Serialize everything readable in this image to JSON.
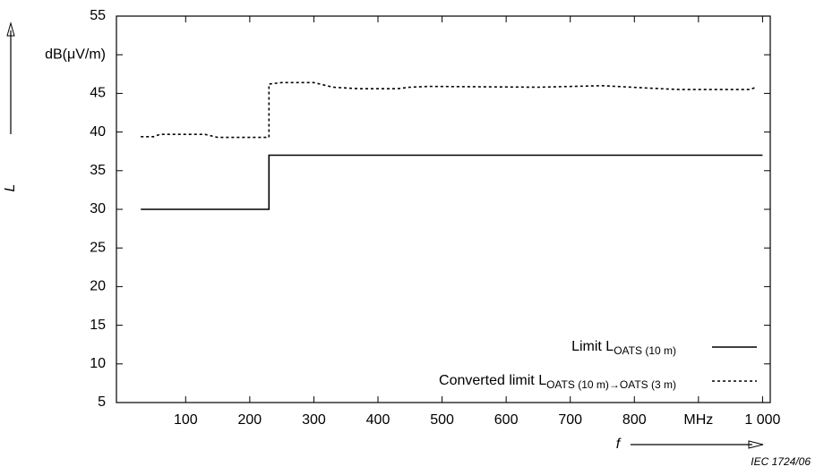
{
  "chart_data": {
    "type": "line",
    "y_label": "L",
    "x_label": "f",
    "footer": "IEC  1724/06",
    "xlim": [
      -8,
      1012
    ],
    "ylim": [
      5,
      55
    ],
    "xticks": [
      100,
      200,
      300,
      400,
      500,
      600,
      700,
      800,
      {
        "value": 900,
        "label": "MHz"
      },
      {
        "value": 1000,
        "label": "1 000"
      }
    ],
    "yticks": [
      5,
      10,
      15,
      20,
      25,
      30,
      35,
      40,
      45,
      {
        "value": 50,
        "label": "dB(μV/m)"
      },
      55
    ],
    "series": [
      {
        "name": "Limit L",
        "name_subscript": "OATS (10 m)",
        "color": "#000000",
        "dash": "solid",
        "x": [
          30,
          230,
          230,
          1000
        ],
        "values": [
          30,
          30,
          37,
          37
        ]
      },
      {
        "name": "Converted limit L",
        "name_subscript": "OATS (10 m)→OATS (3 m)",
        "color": "#000000",
        "dash": "dotted",
        "x": [
          30,
          50,
          60,
          130,
          150,
          200,
          230,
          230,
          250,
          300,
          330,
          370,
          430,
          450,
          480,
          650,
          750,
          820,
          870,
          980,
          990
        ],
        "values": [
          39.4,
          39.4,
          39.7,
          39.7,
          39.3,
          39.3,
          39.3,
          46.2,
          46.4,
          46.4,
          45.8,
          45.6,
          45.6,
          45.8,
          45.9,
          45.8,
          46.0,
          45.7,
          45.5,
          45.5,
          45.8
        ]
      }
    ]
  }
}
